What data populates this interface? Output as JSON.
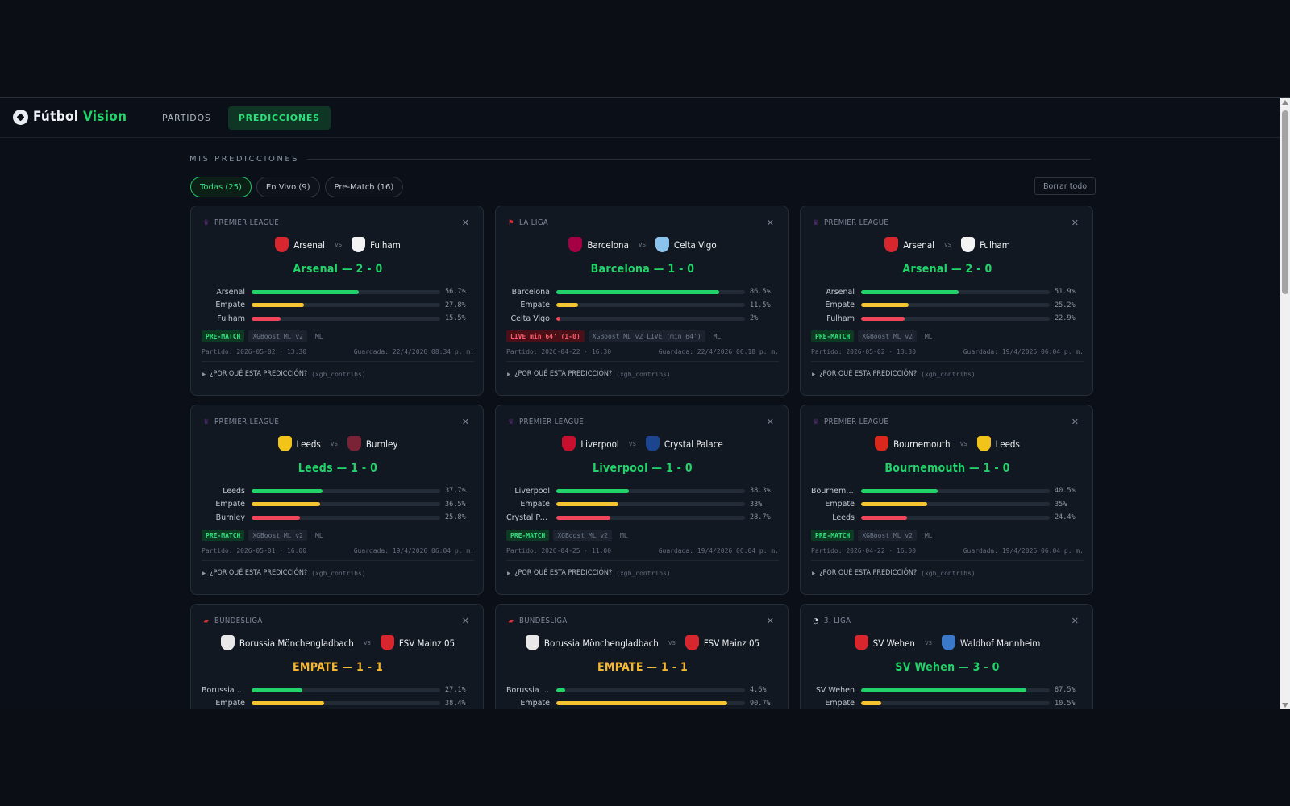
{
  "brand": {
    "part1": "Fútbol",
    "part2": "Vision"
  },
  "nav": {
    "tabs": [
      "PARTIDOS",
      "PREDICCIONES"
    ],
    "active": 1
  },
  "section": {
    "title": "MIS PREDICCIONES"
  },
  "filters": [
    "Todas (25)",
    "En Vivo (9)",
    "Pre-Match (16)"
  ],
  "clear_label": "Borrar todo",
  "why_label": "¿POR QUÉ ESTA PREDICCIÓN?",
  "why_sub": "(xgb_contribs)",
  "vs": "vs",
  "colors": {
    "accent": "#22d36a",
    "draw": "#f5b731",
    "home_bar": "#22d36a",
    "draw_bar": "#f5c431",
    "away_bar": "#f0455a"
  },
  "cards": [
    {
      "league": "PREMIER LEAGUE",
      "league_icon": "premier-league-icon",
      "home": "Arsenal",
      "away": "Fulham",
      "home_crest": "#d8262f",
      "away_crest": "#f3f3f3",
      "result": "Arsenal — 2 - 0",
      "draw": false,
      "bars": [
        {
          "label": "Arsenal",
          "pct": "56.7%",
          "value": 56.7
        },
        {
          "label": "Empate",
          "pct": "27.8%",
          "value": 27.8
        },
        {
          "label": "Fulham",
          "pct": "15.5%",
          "value": 15.5
        }
      ],
      "status": "PRE-MATCH",
      "live": false,
      "model": "XGBoost ML v2",
      "ml": "ML",
      "match": "Partido: 2026-05-02 · 13:30",
      "saved": "Guardada: 22/4/2026 08:34 p. m."
    },
    {
      "league": "LA LIGA",
      "league_icon": "la-liga-icon",
      "home": "Barcelona",
      "away": "Celta Vigo",
      "home_crest": "#a50044",
      "away_crest": "#8ac3ee",
      "result": "Barcelona — 1 - 0",
      "draw": false,
      "bars": [
        {
          "label": "Barcelona",
          "pct": "86.5%",
          "value": 86.5
        },
        {
          "label": "Empate",
          "pct": "11.5%",
          "value": 11.5
        },
        {
          "label": "Celta Vigo",
          "pct": "2%",
          "value": 2
        }
      ],
      "status": "LIVE min 64' (1-0)",
      "live": true,
      "model": "XGBoost ML v2 LIVE (min 64')",
      "ml": "ML",
      "match": "Partido: 2026-04-22 · 16:30",
      "saved": "Guardada: 22/4/2026 06:18 p. m."
    },
    {
      "league": "PREMIER LEAGUE",
      "league_icon": "premier-league-icon",
      "home": "Arsenal",
      "away": "Fulham",
      "home_crest": "#d8262f",
      "away_crest": "#f3f3f3",
      "result": "Arsenal — 2 - 0",
      "draw": false,
      "bars": [
        {
          "label": "Arsenal",
          "pct": "51.9%",
          "value": 51.9
        },
        {
          "label": "Empate",
          "pct": "25.2%",
          "value": 25.2
        },
        {
          "label": "Fulham",
          "pct": "22.9%",
          "value": 22.9
        }
      ],
      "status": "PRE-MATCH",
      "live": false,
      "model": "XGBoost ML v2",
      "ml": "ML",
      "match": "Partido: 2026-05-02 · 13:30",
      "saved": "Guardada: 19/4/2026 06:04 p. m."
    },
    {
      "league": "PREMIER LEAGUE",
      "league_icon": "premier-league-icon",
      "home": "Leeds",
      "away": "Burnley",
      "home_crest": "#f2c318",
      "away_crest": "#7a2336",
      "result": "Leeds — 1 - 0",
      "draw": false,
      "bars": [
        {
          "label": "Leeds",
          "pct": "37.7%",
          "value": 37.7
        },
        {
          "label": "Empate",
          "pct": "36.5%",
          "value": 36.5
        },
        {
          "label": "Burnley",
          "pct": "25.8%",
          "value": 25.8
        }
      ],
      "status": "PRE-MATCH",
      "live": false,
      "model": "XGBoost ML v2",
      "ml": "ML",
      "match": "Partido: 2026-05-01 · 16:00",
      "saved": "Guardada: 19/4/2026 06:04 p. m."
    },
    {
      "league": "PREMIER LEAGUE",
      "league_icon": "premier-league-icon",
      "home": "Liverpool",
      "away": "Crystal Palace",
      "home_crest": "#c8102e",
      "away_crest": "#1b458f",
      "result": "Liverpool — 1 - 0",
      "draw": false,
      "bars": [
        {
          "label": "Liverpool",
          "pct": "38.3%",
          "value": 38.3
        },
        {
          "label": "Empate",
          "pct": "33%",
          "value": 33
        },
        {
          "label": "Crystal Pal...",
          "pct": "28.7%",
          "value": 28.7
        }
      ],
      "status": "PRE-MATCH",
      "live": false,
      "model": "XGBoost ML v2",
      "ml": "ML",
      "match": "Partido: 2026-04-25 · 11:00",
      "saved": "Guardada: 19/4/2026 06:04 p. m."
    },
    {
      "league": "PREMIER LEAGUE",
      "league_icon": "premier-league-icon",
      "home": "Bournemouth",
      "away": "Leeds",
      "home_crest": "#da291c",
      "away_crest": "#f2c318",
      "result": "Bournemouth — 1 - 0",
      "draw": false,
      "bars": [
        {
          "label": "Bournemou...",
          "pct": "40.5%",
          "value": 40.5
        },
        {
          "label": "Empate",
          "pct": "35%",
          "value": 35
        },
        {
          "label": "Leeds",
          "pct": "24.4%",
          "value": 24.4
        }
      ],
      "status": "PRE-MATCH",
      "live": false,
      "model": "XGBoost ML v2",
      "ml": "ML",
      "match": "Partido: 2026-04-22 · 16:00",
      "saved": "Guardada: 19/4/2026 06:04 p. m."
    },
    {
      "league": "BUNDESLIGA",
      "league_icon": "bundesliga-icon",
      "home": "Borussia Mönchengladbach",
      "away": "FSV Mainz 05",
      "home_crest": "#e8e8e8",
      "away_crest": "#d8262f",
      "result": "EMPATE — 1 - 1",
      "draw": true,
      "bars": [
        {
          "label": "Borussia M...",
          "pct": "27.1%",
          "value": 27.1
        },
        {
          "label": "Empate",
          "pct": "38.4%",
          "value": 38.4
        }
      ],
      "status": "",
      "live": false,
      "model": "",
      "ml": "",
      "match": "",
      "saved": ""
    },
    {
      "league": "BUNDESLIGA",
      "league_icon": "bundesliga-icon",
      "home": "Borussia Mönchengladbach",
      "away": "FSV Mainz 05",
      "home_crest": "#e8e8e8",
      "away_crest": "#d8262f",
      "result": "EMPATE — 1 - 1",
      "draw": true,
      "bars": [
        {
          "label": "Borussia M...",
          "pct": "4.6%",
          "value": 4.6
        },
        {
          "label": "Empate",
          "pct": "90.7%",
          "value": 90.7
        }
      ],
      "status": "",
      "live": false,
      "model": "",
      "ml": "",
      "match": "",
      "saved": ""
    },
    {
      "league": "3. LIGA",
      "league_icon": "3-liga-icon",
      "home": "SV Wehen",
      "away": "Waldhof Mannheim",
      "home_crest": "#d8262f",
      "away_crest": "#3a78c9",
      "result": "SV Wehen — 3 - 0",
      "draw": false,
      "bars": [
        {
          "label": "SV Wehen",
          "pct": "87.5%",
          "value": 87.5
        },
        {
          "label": "Empate",
          "pct": "10.5%",
          "value": 10.5
        }
      ],
      "status": "",
      "live": false,
      "model": "",
      "ml": "",
      "match": "",
      "saved": ""
    }
  ]
}
